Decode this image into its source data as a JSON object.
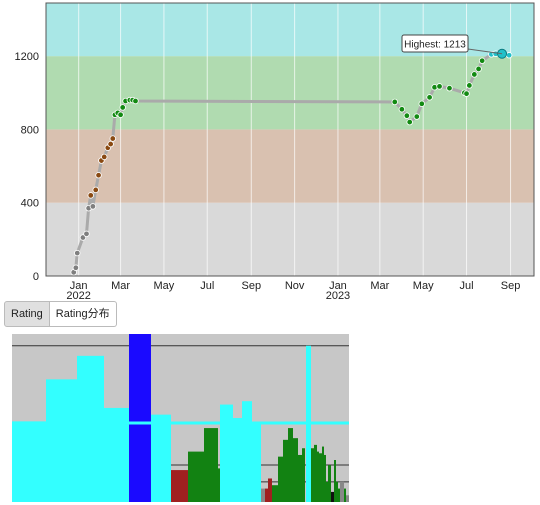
{
  "tabs": [
    {
      "label": "Rating",
      "active": true
    },
    {
      "label": "Rating分布",
      "active": false
    }
  ],
  "colors": {
    "band_cyan": "#a9e7e6",
    "band_green": "#b0dbb0",
    "band_brown": "#d9c1b0",
    "band_gray": "#d9d9d9",
    "line": "#aaaaaa",
    "dot_gray": "#7f7f7f",
    "dot_brown": "#8a4a12",
    "dot_green": "#128a12",
    "dot_cyan": "#22c0c9"
  },
  "chart_data": [
    {
      "type": "line",
      "title": "",
      "xlabel": "",
      "ylabel": "",
      "y_ticks": [
        0,
        400,
        800,
        1200
      ],
      "ylim": [
        0,
        1490
      ],
      "x_ticks": [
        {
          "label": "Jan",
          "sub": "2022",
          "date": "2022-01-01"
        },
        {
          "label": "Mar",
          "sub": "",
          "date": "2022-03-01"
        },
        {
          "label": "May",
          "sub": "",
          "date": "2022-05-01"
        },
        {
          "label": "Jul",
          "sub": "",
          "date": "2022-07-01"
        },
        {
          "label": "Sep",
          "sub": "",
          "date": "2022-09-01"
        },
        {
          "label": "Nov",
          "sub": "",
          "date": "2022-11-01"
        },
        {
          "label": "Jan",
          "sub": "2023",
          "date": "2023-01-01"
        },
        {
          "label": "Mar",
          "sub": "",
          "date": "2023-03-01"
        },
        {
          "label": "May",
          "sub": "",
          "date": "2023-05-01"
        },
        {
          "label": "Jul",
          "sub": "",
          "date": "2023-07-01"
        },
        {
          "label": "Sep",
          "sub": "",
          "date": "2023-09-01"
        }
      ],
      "xlim": [
        "2021-11-16",
        "2023-10-04"
      ],
      "bands": [
        {
          "from": 0,
          "to": 400,
          "color": "#d9d9d9"
        },
        {
          "from": 400,
          "to": 800,
          "color": "#d9c1b0"
        },
        {
          "from": 800,
          "to": 1200,
          "color": "#b0dbb0"
        },
        {
          "from": 1200,
          "to": 1490,
          "color": "#a9e7e6"
        }
      ],
      "grid": true,
      "annotation": {
        "text": "Highest: 1213",
        "date": "2023-08-20",
        "value": 1213
      },
      "x": [
        "2021-12-25",
        "2021-12-28",
        "2021-12-30",
        "2022-01-07",
        "2022-01-12",
        "2022-01-15",
        "2022-01-18",
        "2022-01-21",
        "2022-01-25",
        "2022-01-29",
        "2022-02-02",
        "2022-02-06",
        "2022-02-11",
        "2022-02-15",
        "2022-02-18",
        "2022-02-21",
        "2022-02-25",
        "2022-03-01",
        "2022-03-04",
        "2022-03-08",
        "2022-03-14",
        "2022-03-18",
        "2022-03-22",
        "2023-03-22",
        "2023-04-01",
        "2023-04-08",
        "2023-04-12",
        "2023-04-22",
        "2023-04-29",
        "2023-05-10",
        "2023-05-17",
        "2023-05-24",
        "2023-06-07",
        "2023-06-28",
        "2023-07-01",
        "2023-07-05",
        "2023-07-12",
        "2023-07-18",
        "2023-07-23",
        "2023-08-05",
        "2023-08-11",
        "2023-08-20",
        "2023-08-30"
      ],
      "y": [
        20,
        45,
        125,
        210,
        230,
        370,
        440,
        380,
        470,
        550,
        630,
        650,
        700,
        720,
        750,
        880,
        890,
        880,
        920,
        955,
        960,
        960,
        955,
        950,
        910,
        875,
        840,
        870,
        940,
        975,
        1030,
        1035,
        1025,
        1000,
        995,
        1040,
        1100,
        1130,
        1175,
        1210,
        1213,
        1213,
        1205
      ]
    },
    {
      "type": "bar",
      "title": "",
      "xlabel": "",
      "ylabel": "",
      "ylim": [
        0,
        100
      ],
      "background": "#c7c7c7",
      "reference_lines": [
        93,
        47,
        22,
        12
      ],
      "bars": [
        {
          "x": 0,
          "w": 34,
          "v": 48,
          "c": "#33ffff"
        },
        {
          "x": 34,
          "w": 31,
          "v": 73,
          "c": "#33ffff"
        },
        {
          "x": 65,
          "w": 27,
          "v": 87,
          "c": "#33ffff"
        },
        {
          "x": 92,
          "w": 25,
          "v": 56,
          "c": "#33ffff"
        },
        {
          "x": 117,
          "w": 22,
          "v": 100,
          "c": "#1a0aff"
        },
        {
          "x": 139,
          "w": 20,
          "v": 52,
          "c": "#33ffff"
        },
        {
          "x": 159,
          "w": 17,
          "v": 19,
          "c": "#a02020"
        },
        {
          "x": 176,
          "w": 16,
          "v": 30,
          "c": "#128212"
        },
        {
          "x": 192,
          "w": 14,
          "v": 44,
          "c": "#128212"
        },
        {
          "x": 206,
          "w": 4,
          "v": 20,
          "c": "#128212"
        },
        {
          "x": 208,
          "w": 13,
          "v": 58,
          "c": "#33ffff"
        },
        {
          "x": 221,
          "w": 9,
          "v": 50,
          "c": "#33ffff"
        },
        {
          "x": 230,
          "w": 10,
          "v": 60,
          "c": "#33ffff"
        },
        {
          "x": 240,
          "w": 9,
          "v": 47,
          "c": "#33ffff"
        },
        {
          "x": 249,
          "w": 4,
          "v": 8,
          "c": "#888888"
        },
        {
          "x": 253,
          "w": 3,
          "v": 8,
          "c": "#a02020"
        },
        {
          "x": 256,
          "w": 4,
          "v": 14,
          "c": "#a02020"
        },
        {
          "x": 260,
          "w": 6,
          "v": 10,
          "c": "#128212"
        },
        {
          "x": 266,
          "w": 5,
          "v": 27,
          "c": "#128212"
        },
        {
          "x": 271,
          "w": 5,
          "v": 37,
          "c": "#128212"
        },
        {
          "x": 276,
          "w": 5,
          "v": 44,
          "c": "#128212"
        },
        {
          "x": 281,
          "w": 5,
          "v": 38,
          "c": "#128212"
        },
        {
          "x": 286,
          "w": 4,
          "v": 28,
          "c": "#128212"
        },
        {
          "x": 290,
          "w": 3,
          "v": 32,
          "c": "#128212"
        },
        {
          "x": 294,
          "w": 5,
          "v": 93,
          "c": "#33ffff"
        },
        {
          "x": 299,
          "w": 3,
          "v": 32,
          "c": "#128212"
        },
        {
          "x": 302,
          "w": 3,
          "v": 34,
          "c": "#128212"
        },
        {
          "x": 305,
          "w": 2,
          "v": 30,
          "c": "#128212"
        },
        {
          "x": 307,
          "w": 3,
          "v": 29,
          "c": "#128212"
        },
        {
          "x": 310,
          "w": 2,
          "v": 33,
          "c": "#128212"
        },
        {
          "x": 312,
          "w": 2,
          "v": 28,
          "c": "#128212"
        },
        {
          "x": 314,
          "w": 2,
          "v": 12,
          "c": "#128212"
        },
        {
          "x": 316,
          "w": 3,
          "v": 22,
          "c": "#128212"
        },
        {
          "x": 319,
          "w": 3,
          "v": 6,
          "c": "#111111"
        },
        {
          "x": 322,
          "w": 2,
          "v": 25,
          "c": "#128212"
        },
        {
          "x": 324,
          "w": 2,
          "v": 12,
          "c": "#128212"
        },
        {
          "x": 326,
          "w": 2,
          "v": 8,
          "c": "#128212"
        },
        {
          "x": 328,
          "w": 4,
          "v": 12,
          "c": "#888888"
        },
        {
          "x": 332,
          "w": 2,
          "v": 8,
          "c": "#128212"
        },
        {
          "x": 334,
          "w": 3,
          "v": 4,
          "c": "#888888"
        }
      ],
      "cyan_line": 47,
      "x_domain": [
        0,
        337
      ]
    }
  ]
}
